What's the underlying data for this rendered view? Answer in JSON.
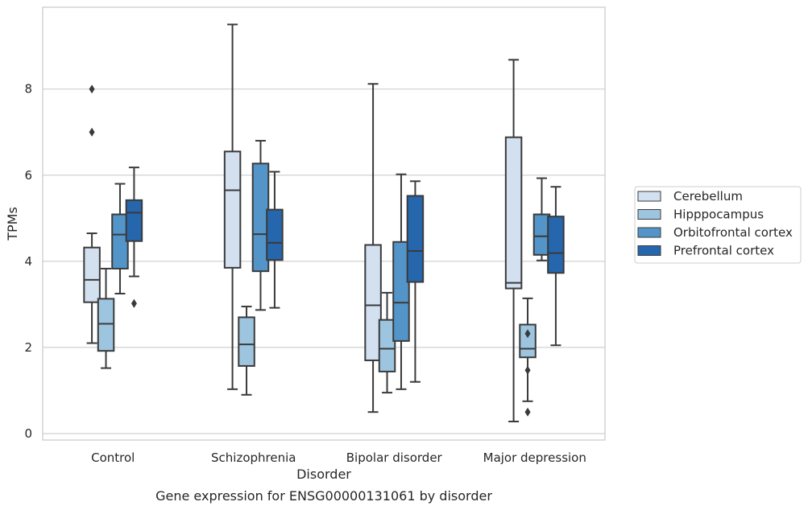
{
  "chart_data": {
    "type": "box",
    "title": "",
    "caption": "Gene expression for ENSG00000131061 by disorder",
    "xlabel": "Disorder",
    "ylabel": "TPMs",
    "ylim": [
      -0.15,
      9.9
    ],
    "yticks": [
      0,
      2,
      4,
      6,
      8
    ],
    "grid": "horizontal",
    "legend_position": "right",
    "categories": [
      "Control",
      "Schizophrenia",
      "Bipolar disorder",
      "Major depression"
    ],
    "series": [
      {
        "name": "Cerebellum",
        "color": "#d2e0f0",
        "boxes": [
          {
            "min": 2.1,
            "q1": 3.05,
            "median": 3.57,
            "q3": 4.32,
            "max": 4.65,
            "outliers": [
              7.0,
              8.0
            ]
          },
          {
            "min": 1.03,
            "q1": 3.85,
            "median": 5.65,
            "q3": 6.55,
            "max": 9.5,
            "outliers": []
          },
          {
            "min": 0.5,
            "q1": 1.7,
            "median": 2.98,
            "q3": 4.38,
            "max": 8.12,
            "outliers": []
          },
          {
            "min": 0.28,
            "q1": 3.37,
            "median": 3.5,
            "q3": 6.88,
            "max": 8.68,
            "outliers": []
          }
        ]
      },
      {
        "name": "Hipppocampus",
        "color": "#9ec5df",
        "boxes": [
          {
            "min": 1.52,
            "q1": 1.92,
            "median": 2.55,
            "q3": 3.13,
            "max": 3.83,
            "outliers": []
          },
          {
            "min": 0.9,
            "q1": 1.57,
            "median": 2.07,
            "q3": 2.7,
            "max": 2.95,
            "outliers": []
          },
          {
            "min": 0.95,
            "q1": 1.44,
            "median": 1.97,
            "q3": 2.64,
            "max": 3.27,
            "outliers": []
          },
          {
            "min": 0.75,
            "q1": 1.77,
            "median": 1.97,
            "q3": 2.53,
            "max": 3.14,
            "outliers": [
              0.5,
              1.47,
              2.32
            ]
          }
        ]
      },
      {
        "name": "Orbitofrontal cortex",
        "color": "#5395c8",
        "boxes": [
          {
            "min": 3.25,
            "q1": 3.83,
            "median": 4.62,
            "q3": 5.09,
            "max": 5.8,
            "outliers": []
          },
          {
            "min": 2.87,
            "q1": 3.77,
            "median": 4.63,
            "q3": 6.27,
            "max": 6.8,
            "outliers": []
          },
          {
            "min": 1.03,
            "q1": 2.15,
            "median": 3.04,
            "q3": 4.45,
            "max": 6.02,
            "outliers": []
          },
          {
            "min": 4.02,
            "q1": 4.15,
            "median": 4.58,
            "q3": 5.09,
            "max": 5.93,
            "outliers": []
          }
        ]
      },
      {
        "name": "Prefrontal cortex",
        "color": "#2566ad",
        "boxes": [
          {
            "min": 3.65,
            "q1": 4.47,
            "median": 5.13,
            "q3": 5.42,
            "max": 6.18,
            "outliers": [
              3.02
            ]
          },
          {
            "min": 2.92,
            "q1": 4.03,
            "median": 4.43,
            "q3": 5.2,
            "max": 6.08,
            "outliers": []
          },
          {
            "min": 1.2,
            "q1": 3.52,
            "median": 4.24,
            "q3": 5.52,
            "max": 5.86,
            "outliers": []
          },
          {
            "min": 2.05,
            "q1": 3.73,
            "median": 4.19,
            "q3": 5.04,
            "max": 5.73,
            "outliers": []
          }
        ]
      }
    ]
  }
}
